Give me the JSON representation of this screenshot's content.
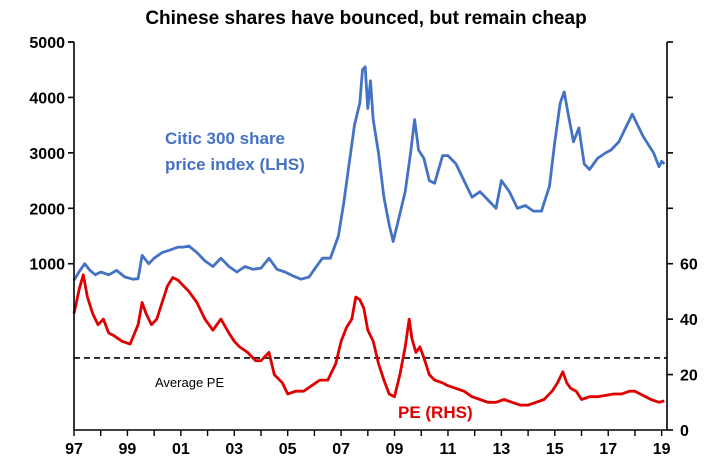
{
  "chart_data": {
    "type": "line",
    "title": "Chinese  shares have bounced, but remain cheap",
    "x_tick_labels": [
      "97",
      "99",
      "01",
      "03",
      "05",
      "07",
      "09",
      "11",
      "13",
      "15",
      "17",
      "19"
    ],
    "x_tick_years": [
      1997,
      1999,
      2001,
      2003,
      2005,
      2007,
      2009,
      2011,
      2013,
      2015,
      2017,
      2019
    ],
    "xlim": [
      1997,
      2019.2
    ],
    "left_axis": {
      "ticks": [
        1000,
        2000,
        3000,
        4000,
        5000
      ],
      "ylim": [
        -2000,
        5000
      ]
    },
    "right_axis": {
      "ticks": [
        0,
        20,
        40,
        60
      ],
      "ylim": [
        0,
        140
      ]
    },
    "average_pe": {
      "label": "Average PE",
      "value": 26,
      "axis": "right",
      "style": "dashed"
    },
    "series": [
      {
        "name": "Citic 300 share price index (LHS)",
        "label_lines": [
          "Citic 300 share",
          "price index (LHS)"
        ],
        "axis": "left",
        "color": "#4472c4",
        "points": [
          [
            1997.0,
            700
          ],
          [
            1997.2,
            860
          ],
          [
            1997.4,
            1000
          ],
          [
            1997.6,
            880
          ],
          [
            1997.8,
            800
          ],
          [
            1998.0,
            850
          ],
          [
            1998.3,
            800
          ],
          [
            1998.6,
            880
          ],
          [
            1998.9,
            760
          ],
          [
            1999.2,
            720
          ],
          [
            1999.4,
            730
          ],
          [
            1999.55,
            1150
          ],
          [
            1999.8,
            1000
          ],
          [
            2000.0,
            1100
          ],
          [
            2000.3,
            1200
          ],
          [
            2000.6,
            1250
          ],
          [
            2000.9,
            1300
          ],
          [
            2001.1,
            1300
          ],
          [
            2001.3,
            1320
          ],
          [
            2001.6,
            1200
          ],
          [
            2001.9,
            1050
          ],
          [
            2002.2,
            950
          ],
          [
            2002.5,
            1100
          ],
          [
            2002.8,
            950
          ],
          [
            2003.1,
            850
          ],
          [
            2003.4,
            950
          ],
          [
            2003.7,
            900
          ],
          [
            2004.0,
            920
          ],
          [
            2004.3,
            1100
          ],
          [
            2004.6,
            900
          ],
          [
            2004.9,
            850
          ],
          [
            2005.2,
            780
          ],
          [
            2005.5,
            720
          ],
          [
            2005.8,
            760
          ],
          [
            2006.0,
            900
          ],
          [
            2006.3,
            1100
          ],
          [
            2006.6,
            1100
          ],
          [
            2006.9,
            1500
          ],
          [
            2007.1,
            2100
          ],
          [
            2007.3,
            2800
          ],
          [
            2007.5,
            3500
          ],
          [
            2007.7,
            3900
          ],
          [
            2007.8,
            4500
          ],
          [
            2007.9,
            4550
          ],
          [
            2008.0,
            3800
          ],
          [
            2008.1,
            4300
          ],
          [
            2008.2,
            3600
          ],
          [
            2008.4,
            3000
          ],
          [
            2008.6,
            2200
          ],
          [
            2008.8,
            1700
          ],
          [
            2008.95,
            1400
          ],
          [
            2009.2,
            1900
          ],
          [
            2009.4,
            2300
          ],
          [
            2009.6,
            3000
          ],
          [
            2009.75,
            3600
          ],
          [
            2009.9,
            3050
          ],
          [
            2010.1,
            2900
          ],
          [
            2010.3,
            2500
          ],
          [
            2010.5,
            2450
          ],
          [
            2010.8,
            2950
          ],
          [
            2011.0,
            2950
          ],
          [
            2011.3,
            2800
          ],
          [
            2011.6,
            2500
          ],
          [
            2011.9,
            2200
          ],
          [
            2012.2,
            2300
          ],
          [
            2012.5,
            2150
          ],
          [
            2012.8,
            2000
          ],
          [
            2013.0,
            2500
          ],
          [
            2013.3,
            2300
          ],
          [
            2013.6,
            2000
          ],
          [
            2013.9,
            2050
          ],
          [
            2014.2,
            1950
          ],
          [
            2014.5,
            1950
          ],
          [
            2014.8,
            2400
          ],
          [
            2015.0,
            3200
          ],
          [
            2015.2,
            3900
          ],
          [
            2015.35,
            4100
          ],
          [
            2015.5,
            3700
          ],
          [
            2015.7,
            3200
          ],
          [
            2015.9,
            3450
          ],
          [
            2016.1,
            2800
          ],
          [
            2016.3,
            2700
          ],
          [
            2016.6,
            2900
          ],
          [
            2016.9,
            3000
          ],
          [
            2017.1,
            3050
          ],
          [
            2017.4,
            3200
          ],
          [
            2017.7,
            3500
          ],
          [
            2017.9,
            3700
          ],
          [
            2018.1,
            3500
          ],
          [
            2018.3,
            3300
          ],
          [
            2018.5,
            3150
          ],
          [
            2018.7,
            3000
          ],
          [
            2018.9,
            2750
          ],
          [
            2019.0,
            2850
          ],
          [
            2019.1,
            2800
          ]
        ]
      },
      {
        "name": "PE (RHS)",
        "label_lines": [
          "PE (RHS)"
        ],
        "axis": "right",
        "color": "#e00000",
        "points": [
          [
            1997.0,
            42
          ],
          [
            1997.2,
            51
          ],
          [
            1997.35,
            56
          ],
          [
            1997.5,
            48
          ],
          [
            1997.7,
            42
          ],
          [
            1997.9,
            38
          ],
          [
            1998.1,
            40
          ],
          [
            1998.3,
            35
          ],
          [
            1998.5,
            34
          ],
          [
            1998.8,
            32
          ],
          [
            1999.1,
            31
          ],
          [
            1999.4,
            38
          ],
          [
            1999.55,
            46
          ],
          [
            1999.7,
            42
          ],
          [
            1999.9,
            38
          ],
          [
            2000.1,
            40
          ],
          [
            2000.3,
            46
          ],
          [
            2000.5,
            52
          ],
          [
            2000.7,
            55
          ],
          [
            2000.9,
            54
          ],
          [
            2001.1,
            52
          ],
          [
            2001.3,
            50
          ],
          [
            2001.6,
            46
          ],
          [
            2001.9,
            40
          ],
          [
            2002.2,
            36
          ],
          [
            2002.5,
            40
          ],
          [
            2002.8,
            35
          ],
          [
            2003.0,
            32
          ],
          [
            2003.2,
            30
          ],
          [
            2003.5,
            28
          ],
          [
            2003.8,
            25
          ],
          [
            2004.0,
            25
          ],
          [
            2004.3,
            28
          ],
          [
            2004.5,
            20
          ],
          [
            2004.8,
            17
          ],
          [
            2005.0,
            13
          ],
          [
            2005.3,
            14
          ],
          [
            2005.6,
            14
          ],
          [
            2005.9,
            16
          ],
          [
            2006.2,
            18
          ],
          [
            2006.5,
            18
          ],
          [
            2006.8,
            24
          ],
          [
            2007.0,
            32
          ],
          [
            2007.2,
            37
          ],
          [
            2007.4,
            40
          ],
          [
            2007.55,
            48
          ],
          [
            2007.7,
            47
          ],
          [
            2007.85,
            44
          ],
          [
            2008.0,
            36
          ],
          [
            2008.2,
            32
          ],
          [
            2008.4,
            24
          ],
          [
            2008.6,
            18
          ],
          [
            2008.8,
            13
          ],
          [
            2009.0,
            12
          ],
          [
            2009.2,
            20
          ],
          [
            2009.4,
            30
          ],
          [
            2009.55,
            40
          ],
          [
            2009.65,
            33
          ],
          [
            2009.8,
            28
          ],
          [
            2009.95,
            30
          ],
          [
            2010.1,
            26
          ],
          [
            2010.3,
            20
          ],
          [
            2010.5,
            18
          ],
          [
            2010.8,
            17
          ],
          [
            2011.0,
            16
          ],
          [
            2011.3,
            15
          ],
          [
            2011.6,
            14
          ],
          [
            2011.9,
            12
          ],
          [
            2012.2,
            11
          ],
          [
            2012.5,
            10
          ],
          [
            2012.8,
            10
          ],
          [
            2013.1,
            11
          ],
          [
            2013.4,
            10
          ],
          [
            2013.7,
            9
          ],
          [
            2014.0,
            9
          ],
          [
            2014.3,
            10
          ],
          [
            2014.6,
            11
          ],
          [
            2014.9,
            14
          ],
          [
            2015.1,
            17
          ],
          [
            2015.3,
            21
          ],
          [
            2015.45,
            17
          ],
          [
            2015.6,
            15
          ],
          [
            2015.8,
            14
          ],
          [
            2016.0,
            11
          ],
          [
            2016.3,
            12
          ],
          [
            2016.6,
            12
          ],
          [
            2016.9,
            12.5
          ],
          [
            2017.2,
            13
          ],
          [
            2017.5,
            13
          ],
          [
            2017.8,
            14
          ],
          [
            2018.0,
            14
          ],
          [
            2018.3,
            12.5
          ],
          [
            2018.6,
            11
          ],
          [
            2018.9,
            10
          ],
          [
            2019.1,
            10.5
          ]
        ]
      }
    ]
  }
}
